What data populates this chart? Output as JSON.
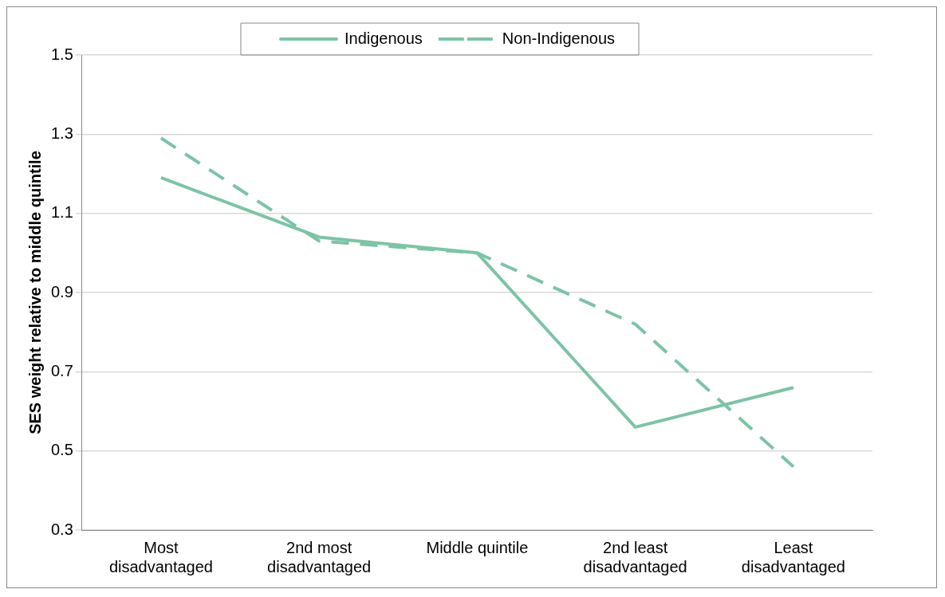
{
  "chart_data": {
    "type": "line",
    "ylabel": "SES weight relative to middle quintile",
    "categories": [
      "Most disadvantaged",
      "2nd most disadvantaged",
      "Middle quintile",
      "2nd least disadvantaged",
      "Least disadvantaged"
    ],
    "series": [
      {
        "name": "Indigenous",
        "color": "#7dc3a6",
        "line_style": "solid",
        "values": [
          1.19,
          1.04,
          1.0,
          0.56,
          0.66
        ]
      },
      {
        "name": "Non-Indigenous",
        "color": "#7dc3a6",
        "line_style": "dashed",
        "values": [
          1.29,
          1.03,
          1.0,
          0.82,
          0.46
        ]
      }
    ],
    "ylim": [
      0.3,
      1.5
    ],
    "yticks": [
      0.3,
      0.5,
      0.7,
      0.9,
      1.1,
      1.3,
      1.5
    ],
    "grid": "y",
    "legend": "top",
    "marker": "none"
  }
}
